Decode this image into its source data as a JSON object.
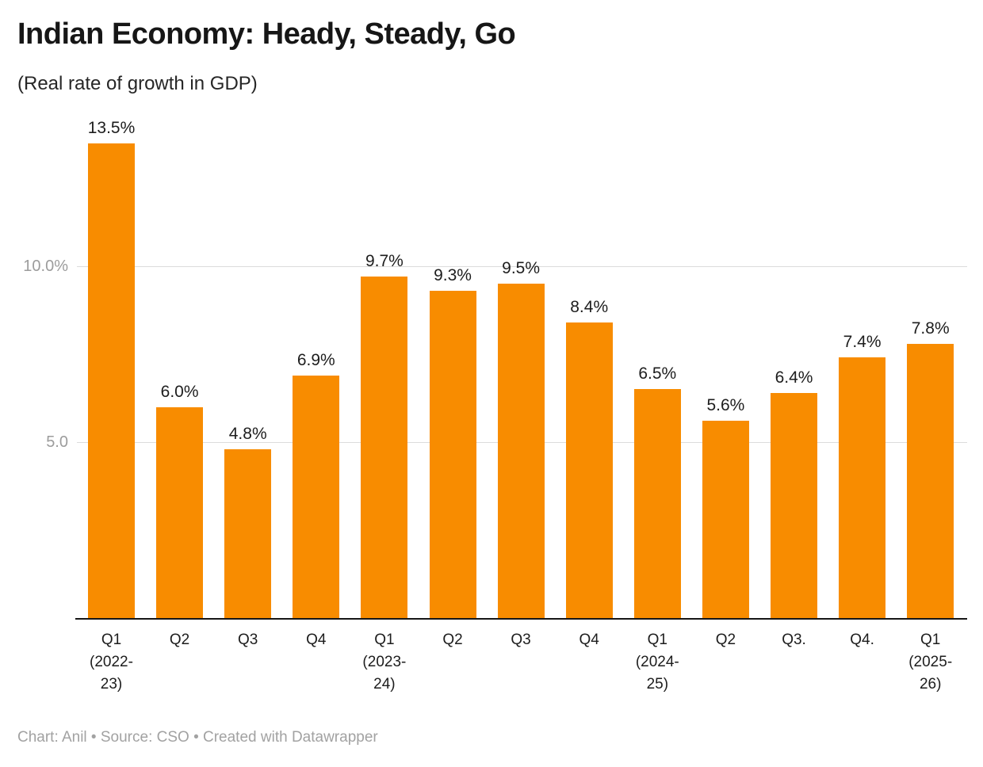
{
  "header": {
    "title": "Indian Economy: Heady, Steady, Go",
    "subtitle": "(Real rate of growth in GDP)"
  },
  "footer": {
    "text": "Chart: Anil • Source: CSO • Created with Datawrapper"
  },
  "chart_data": {
    "type": "bar",
    "title": "Indian Economy: Heady, Steady, Go",
    "subtitle": "(Real rate of growth in GDP)",
    "categories": [
      "Q1 (2022-23)",
      "Q2",
      "Q3",
      "Q4",
      "Q1 (2023-24)",
      "Q2",
      "Q3",
      "Q4",
      "Q1 (2024-25)",
      "Q2",
      "Q3.",
      "Q4.",
      "Q1 (2025-26)"
    ],
    "category_label_lines": [
      [
        "Q1",
        "(2022-",
        "23)"
      ],
      [
        "Q2"
      ],
      [
        "Q3"
      ],
      [
        "Q4"
      ],
      [
        "Q1",
        "(2023-",
        "24)"
      ],
      [
        "Q2"
      ],
      [
        "Q3"
      ],
      [
        "Q4"
      ],
      [
        "Q1",
        "(2024-",
        "25)"
      ],
      [
        "Q2"
      ],
      [
        "Q3."
      ],
      [
        "Q4."
      ],
      [
        "Q1",
        "(2025-",
        "26)"
      ]
    ],
    "values": [
      13.5,
      6.0,
      4.8,
      6.9,
      9.7,
      9.3,
      9.5,
      8.4,
      6.5,
      5.6,
      6.4,
      7.4,
      7.8
    ],
    "value_labels": [
      "13.5%",
      "6.0%",
      "4.8%",
      "6.9%",
      "9.7%",
      "9.3%",
      "9.5%",
      "8.4%",
      "6.5%",
      "5.6%",
      "6.4%",
      "7.4%",
      "7.8%"
    ],
    "xlabel": "",
    "ylabel": "",
    "ylim": [
      0,
      14.45
    ],
    "y_ticks": [
      {
        "value": 5.0,
        "label": "5.0"
      },
      {
        "value": 10.0,
        "label": "10.0%"
      }
    ],
    "grid": true,
    "legend": "none",
    "bar_color": "#F88C00",
    "grid_color": "#dcdcdc",
    "axis_color": "#161616",
    "tick_label_color": "#9c9c9c"
  }
}
